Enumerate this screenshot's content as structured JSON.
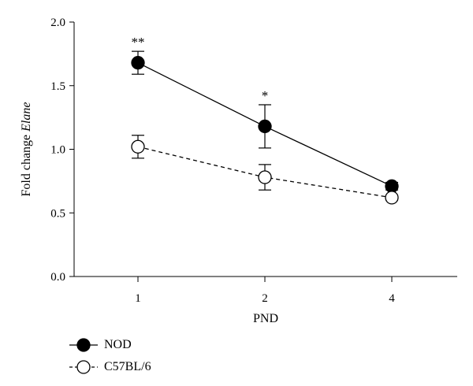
{
  "chart_data": {
    "type": "line",
    "x": [
      "1",
      "2",
      "4"
    ],
    "xlabel": "PND",
    "ylabel_prefix": "Fold change ",
    "ylabel_italic": "Elane",
    "ylim": [
      0,
      2.0
    ],
    "yticks": [
      "0.0",
      "0.5",
      "1.0",
      "1.5",
      "2.0"
    ],
    "series": [
      {
        "name": "NOD",
        "values": [
          1.68,
          1.18,
          0.71
        ],
        "errors": [
          0.09,
          0.17,
          0.03
        ],
        "marker": "filled-circle",
        "line": "solid",
        "color": "#000000"
      },
      {
        "name": "C57BL/6",
        "values": [
          1.02,
          0.78,
          0.62
        ],
        "errors": [
          0.09,
          0.1,
          0.02
        ],
        "marker": "open-circle",
        "line": "dashed",
        "color": "#000000"
      }
    ],
    "annotations": [
      {
        "x": "1",
        "text": "**"
      },
      {
        "x": "2",
        "text": "*"
      }
    ],
    "legend_position": "bottom-left",
    "grid": false
  }
}
